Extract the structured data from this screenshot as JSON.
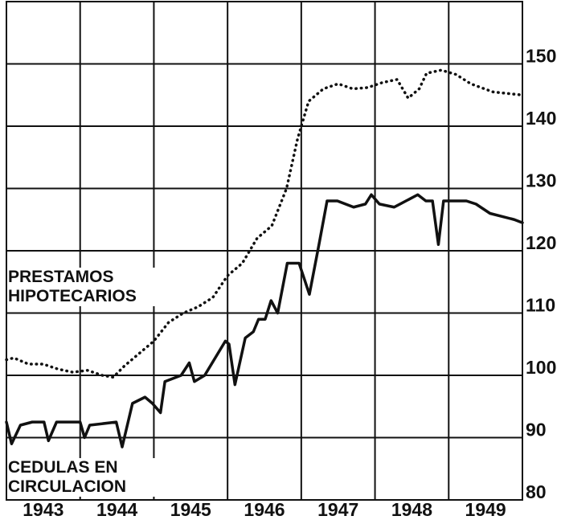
{
  "chart_data": {
    "type": "line",
    "xlim": [
      1943,
      1950
    ],
    "xticks": [
      1943,
      1944,
      1945,
      1946,
      1947,
      1948,
      1949
    ],
    "ylim": [
      80,
      160
    ],
    "yticks": [
      80,
      90,
      100,
      110,
      120,
      130,
      140,
      150
    ],
    "grid": true,
    "series": [
      {
        "name": "PRESTAMOS HIPOTECARIOS",
        "color": "#111111",
        "style": "dotted",
        "x": [
          1943.0,
          1943.1,
          1943.3,
          1943.5,
          1943.7,
          1943.9,
          1944.1,
          1944.3,
          1944.45,
          1944.6,
          1944.8,
          1945.0,
          1945.2,
          1945.4,
          1945.6,
          1945.8,
          1946.0,
          1946.2,
          1946.4,
          1946.6,
          1946.8,
          1946.95,
          1947.1,
          1947.3,
          1947.5,
          1947.7,
          1947.9,
          1948.1,
          1948.3,
          1948.45,
          1948.6,
          1948.7,
          1948.9,
          1949.1,
          1949.3,
          1949.6,
          1950.0
        ],
        "values": [
          102.5,
          102.8,
          101.8,
          101.8,
          101,
          100.5,
          100.8,
          100,
          99.7,
          101.5,
          103.5,
          105.5,
          108.5,
          110,
          111,
          112.5,
          116,
          118,
          122,
          124,
          130,
          138,
          144,
          146,
          146.8,
          146,
          146.2,
          147,
          147.5,
          144.5,
          146,
          148.5,
          149,
          148.3,
          146.8,
          145.5,
          145
        ]
      },
      {
        "name": "CEDULAS EN CIRCULACION",
        "color": "#111111",
        "style": "solid",
        "x": [
          1943.0,
          1943.07,
          1943.19,
          1943.35,
          1943.51,
          1943.57,
          1943.68,
          1944.0,
          1944.06,
          1944.13,
          1944.49,
          1944.57,
          1944.71,
          1944.88,
          1944.98,
          1945.09,
          1945.15,
          1945.37,
          1945.48,
          1945.55,
          1945.69,
          1945.97,
          1946.02,
          1946.1,
          1946.24,
          1946.35,
          1946.42,
          1946.51,
          1946.59,
          1946.68,
          1946.81,
          1946.97,
          1947.11,
          1947.24,
          1947.35,
          1947.49,
          1947.71,
          1947.87,
          1947.95,
          1948.06,
          1948.26,
          1948.42,
          1948.58,
          1948.69,
          1948.78,
          1948.86,
          1948.93,
          1949.24,
          1949.37,
          1949.56,
          1949.89,
          1950.0
        ],
        "values": [
          92.5,
          89,
          92,
          92.5,
          92.5,
          89.5,
          92.5,
          92.5,
          90,
          92,
          92.5,
          88.5,
          95.5,
          96.5,
          95.5,
          94,
          99,
          100,
          102,
          99,
          100,
          105.5,
          105,
          98.5,
          106,
          107,
          109,
          109,
          112,
          110,
          118,
          118,
          113,
          121,
          128,
          128,
          127,
          127.5,
          129,
          127.5,
          127,
          128,
          129,
          128,
          128,
          121,
          128,
          128,
          127.5,
          126,
          125,
          124.5
        ]
      }
    ]
  }
}
